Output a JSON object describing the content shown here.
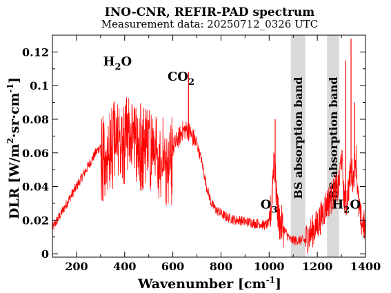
{
  "chart_data": {
    "type": "line",
    "title": "INO-CNR, REFIR-PAD spectrum",
    "subtitle": "Measurement data: 20250712_0326 UTC",
    "xlabel": "Wavenumber [cm",
    "xlabel_sup": "-1",
    "xlabel_end": "]",
    "ylabel_parts": {
      "p1": "DLR [W/m",
      "s1": "2",
      "p2": "·sr·cm",
      "s2": "-1",
      "p3": "]"
    },
    "xlim": [
      100,
      1400
    ],
    "ylim": [
      -0.002,
      0.13
    ],
    "xticks": [
      200,
      400,
      600,
      800,
      1000,
      1200,
      1400
    ],
    "yticks": [
      0,
      0.02,
      0.04,
      0.06,
      0.08,
      0.1,
      0.12
    ],
    "xtick_labels": [
      "200",
      "400",
      "600",
      "800",
      "1000",
      "1200",
      "1400"
    ],
    "ytick_labels": [
      "0",
      "0.02",
      "0.04",
      "0.06",
      "0.08",
      "0.1",
      "0.12"
    ],
    "series": [
      {
        "color": "#ff0000",
        "x": [
          100,
          120,
          140,
          160,
          180,
          200,
          220,
          240,
          260,
          280,
          300,
          320,
          340,
          360,
          380,
          400,
          420,
          440,
          460,
          480,
          500,
          520,
          540,
          560,
          580,
          600,
          620,
          640,
          660,
          670,
          680,
          700,
          720,
          740,
          760,
          780,
          800,
          820,
          840,
          860,
          880,
          900,
          920,
          940,
          960,
          980,
          1000,
          1010,
          1020,
          1030,
          1040,
          1060,
          1080,
          1090,
          1150,
          1170,
          1190,
          1210,
          1225,
          1240,
          1290,
          1300,
          1310,
          1320,
          1330,
          1340,
          1350,
          1360,
          1370,
          1380,
          1400
        ],
        "y": [
          0.015,
          0.02,
          0.025,
          0.03,
          0.035,
          0.04,
          0.045,
          0.05,
          0.055,
          0.06,
          0.064,
          0.068,
          0.072,
          0.074,
          0.076,
          0.075,
          0.074,
          0.073,
          0.072,
          0.07,
          0.068,
          0.066,
          0.064,
          0.063,
          0.062,
          0.063,
          0.068,
          0.073,
          0.074,
          0.072,
          0.07,
          0.065,
          0.055,
          0.04,
          0.03,
          0.026,
          0.024,
          0.022,
          0.021,
          0.02,
          0.02,
          0.019,
          0.019,
          0.018,
          0.018,
          0.017,
          0.018,
          0.03,
          0.06,
          0.035,
          0.02,
          0.015,
          0.01,
          0.008,
          0.008,
          0.012,
          0.015,
          0.02,
          0.025,
          0.03,
          0.04,
          0.06,
          0.035,
          0.03,
          0.04,
          0.05,
          0.045,
          0.06,
          0.03,
          0.02,
          0.015
        ],
        "peaks": [
          {
            "x": 665,
            "y": 0.108
          },
          {
            "x": 1025,
            "y": 0.08
          },
          {
            "x": 1318,
            "y": 0.115
          },
          {
            "x": 1340,
            "y": 0.128
          },
          {
            "x": 1355,
            "y": 0.09
          }
        ]
      }
    ],
    "bands": [
      {
        "x0": 1090,
        "x1": 1150,
        "label": "BS absorption band",
        "color": "#d9d9d9"
      },
      {
        "x0": 1240,
        "x1": 1290,
        "label": "BS absorption band",
        "color": "#d9d9d9"
      }
    ],
    "annotations": [
      {
        "text": "H",
        "sub": "2",
        "text2": "O",
        "x": 430,
        "y": 0.112
      },
      {
        "text": "CO",
        "sub": "2",
        "text2": "",
        "x": 690,
        "y": 0.103
      },
      {
        "text": "O",
        "sub": "3",
        "text2": "",
        "x": 1035,
        "y": 0.027
      },
      {
        "text": "H",
        "sub": "2",
        "text2": "O",
        "x": 1380,
        "y": 0.027
      }
    ],
    "grid": false,
    "legend": "none"
  }
}
